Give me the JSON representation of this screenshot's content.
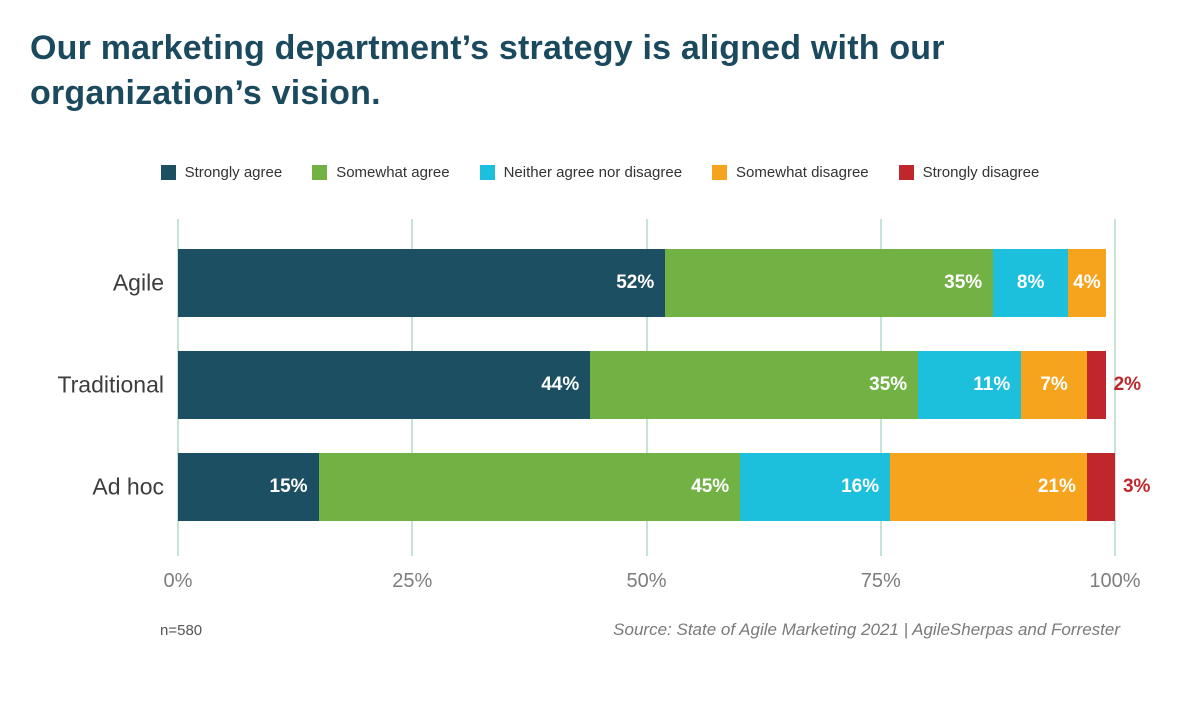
{
  "title": "Our marketing department’s strategy is aligned with our organization’s vision.",
  "footnote": "n=580",
  "source": "Source: State of Agile Marketing 2021 | AgileSherpas and Forrester",
  "colors": {
    "title": "#1b4a5e",
    "grid": "#c7e3d6",
    "tick_text": "#7d7d7d",
    "category_text": "#3d3d3d",
    "segment_text": "#ffffff"
  },
  "chart_data": {
    "type": "bar",
    "orientation": "horizontal-stacked",
    "title": "Our marketing department’s strategy is aligned with our organization’s vision.",
    "categories": [
      "Agile",
      "Traditional",
      "Ad hoc"
    ],
    "series": [
      {
        "name": "Strongly agree",
        "color": "#1d4f63",
        "values": [
          52,
          44,
          15
        ]
      },
      {
        "name": "Somewhat agree",
        "color": "#72b244",
        "values": [
          35,
          35,
          45
        ]
      },
      {
        "name": "Neither agree nor disagree",
        "color": "#1cc0dd",
        "values": [
          8,
          11,
          16
        ]
      },
      {
        "name": "Somewhat disagree",
        "color": "#f6a31d",
        "values": [
          4,
          7,
          21
        ]
      },
      {
        "name": "Strongly disagree",
        "color": "#c0272d",
        "values": [
          0,
          2,
          3
        ],
        "label_outside": true
      }
    ],
    "value_suffix": "%",
    "x_ticks": [
      {
        "label": "0%",
        "value": 0
      },
      {
        "label": "25%",
        "value": 25
      },
      {
        "label": "50%",
        "value": 50
      },
      {
        "label": "75%",
        "value": 75
      },
      {
        "label": "100%",
        "value": 100
      }
    ],
    "xlim": [
      0,
      100
    ],
    "grid": true,
    "legend_position": "top"
  }
}
